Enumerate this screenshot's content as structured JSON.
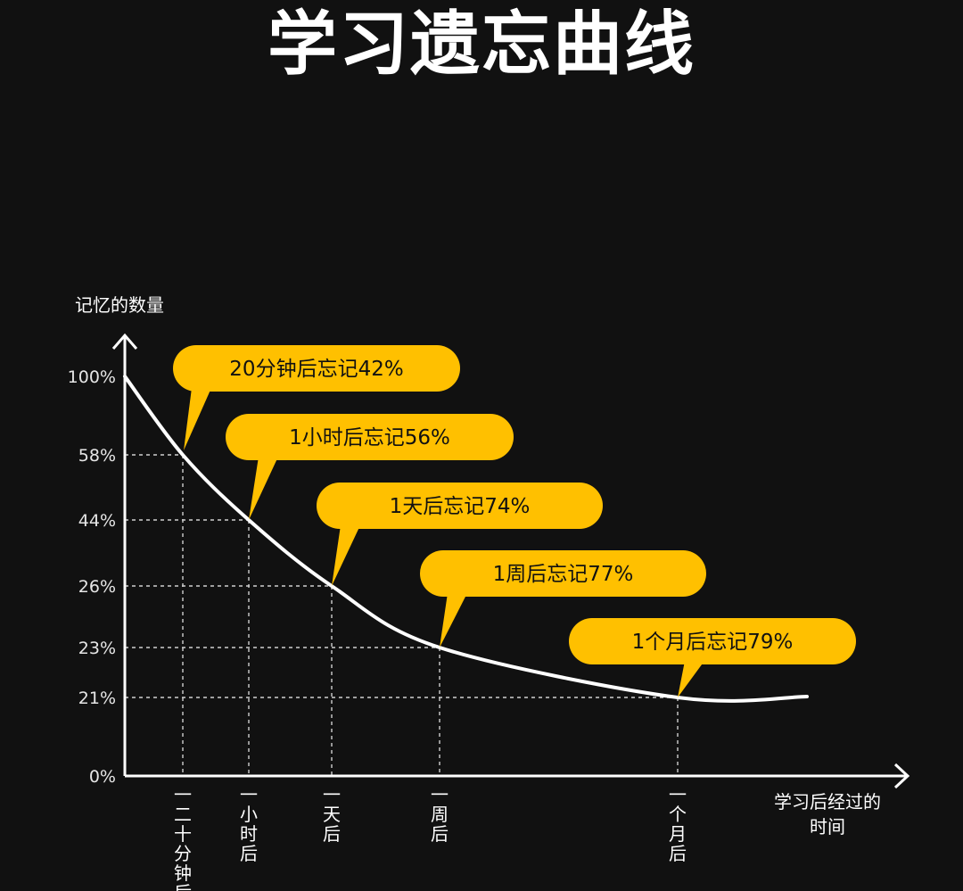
{
  "page": {
    "title": "学习遗忘曲线"
  },
  "colors": {
    "background": "#111111",
    "curve": "#ffffff",
    "callout": "#ffc000",
    "callout_text": "#111111",
    "gridline": "#cfcfcf",
    "axis": "#ffffff"
  },
  "chart_data": {
    "type": "line",
    "title": "学习遗忘曲线",
    "ylabel": "记忆的数量",
    "xlabel": "学习后经过的时间",
    "ylim": [
      0,
      100
    ],
    "y_ticks": [
      "100%",
      "58%",
      "44%",
      "26%",
      "23%",
      "21%",
      "0%"
    ],
    "x_ticks": [
      "一二十分钟后",
      "一小时后",
      "一天后",
      "一周后",
      "一个月后"
    ],
    "grid": "dashed guides at marked points",
    "series": [
      {
        "points": [
          {
            "x": "0",
            "y": 100
          },
          {
            "x": "二十分钟后",
            "y": 58
          },
          {
            "x": "一小时后",
            "y": 44
          },
          {
            "x": "一天后",
            "y": 26
          },
          {
            "x": "一周后",
            "y": 23
          },
          {
            "x": "一个月后",
            "y": 21
          }
        ]
      }
    ],
    "annotations": [
      {
        "point": "二十分钟后",
        "text": "20分钟后忘记42%"
      },
      {
        "point": "一小时后",
        "text": "1小时后忘记56%"
      },
      {
        "point": "一天后",
        "text": "1天后忘记74%"
      },
      {
        "point": "一周后",
        "text": "1周后忘记77%"
      },
      {
        "point": "一个月后",
        "text": "1个月后忘记79%"
      }
    ]
  }
}
